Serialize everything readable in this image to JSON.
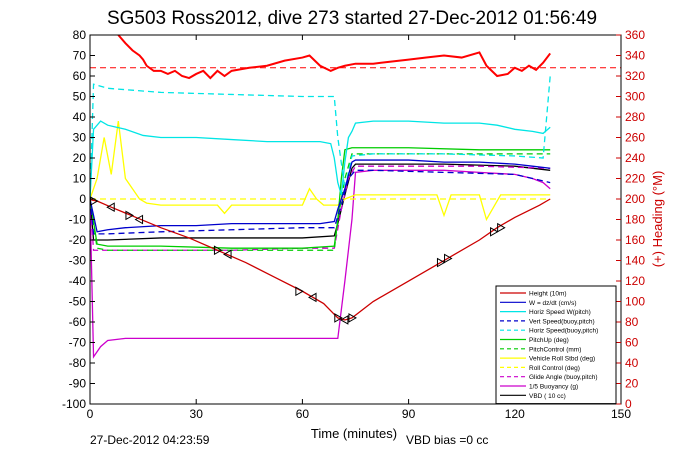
{
  "chart_data": {
    "type": "line",
    "title": "SG503 Ross2012, dive 273 started 27-Dec-2012 01:56:49",
    "xlabel": "Time (minutes)",
    "ylabel_right": "(+) Heading (°M)",
    "footer_left": "27-Dec-2012 04:23:59",
    "footer_right": "VBD bias =0 cc",
    "xlim": [
      0,
      150
    ],
    "ylim": [
      -100,
      80
    ],
    "y2lim": [
      0,
      360
    ],
    "xticks": [
      0,
      30,
      60,
      90,
      120,
      150
    ],
    "yticks": [
      -100,
      -90,
      -80,
      -70,
      -60,
      -50,
      -40,
      -30,
      -20,
      -10,
      0,
      10,
      20,
      30,
      40,
      50,
      60,
      70,
      80
    ],
    "y2ticks": [
      0,
      20,
      40,
      60,
      80,
      100,
      120,
      140,
      160,
      180,
      200,
      220,
      240,
      260,
      280,
      300,
      320,
      340,
      360
    ],
    "grid": false,
    "legend_position": "bottom-right",
    "colors": {
      "height": "#cc0000",
      "w": "#0000cc",
      "horiz_speed": "#00e5e5",
      "vert_speed": "#0000cc",
      "glide_horiz_speed": "#00e5e5",
      "pitch_up": "#00cc00",
      "pitch_control": "#00cc00",
      "vehicle_roll": "#ffff00",
      "roll_control": "#ffff00",
      "glide_angle": "#cc00cc",
      "buoyancy": "#cc00cc",
      "vbd": "#000000",
      "heading": "#ff0000",
      "heading_axis": "#cc0000"
    },
    "series": [
      {
        "name": "Height (10m)",
        "x": [
          0,
          0.5,
          2,
          6,
          13,
          20,
          28,
          36,
          44,
          52,
          60,
          66,
          70,
          72,
          74,
          80,
          90,
          100,
          110,
          115,
          120,
          127,
          130
        ],
        "y": [
          0,
          -0.5,
          -1,
          -4,
          -9,
          -14,
          -19,
          -25,
          -31,
          -38,
          -45,
          -51,
          -58,
          -59,
          -58,
          -50,
          -40,
          -30,
          -20,
          -14,
          -9,
          -3,
          0
        ]
      },
      {
        "name": "W = dz/dt (cm/s)",
        "x": [
          0,
          2,
          5,
          10,
          20,
          30,
          40,
          50,
          60,
          65,
          69,
          70,
          72,
          74,
          75,
          80,
          90,
          100,
          110,
          120,
          125,
          130
        ],
        "y": [
          0,
          -16,
          -15,
          -14,
          -13,
          -13,
          -12,
          -12,
          -12,
          -12,
          -11,
          -5,
          5,
          18,
          19,
          19,
          19,
          18,
          18,
          17,
          16,
          15
        ]
      },
      {
        "name": "Horiz Speed W(pitch)",
        "x": [
          0,
          1,
          3,
          5,
          10,
          15,
          20,
          30,
          40,
          50,
          60,
          65,
          68,
          69,
          70,
          71,
          72,
          73,
          74,
          75,
          80,
          90,
          100,
          110,
          115,
          120,
          125,
          128,
          130
        ],
        "y": [
          0,
          34,
          38,
          36,
          34,
          31,
          30,
          30,
          29,
          28,
          28,
          28,
          27,
          20,
          8,
          2,
          18,
          30,
          33,
          37,
          38,
          38,
          37,
          37,
          36,
          34,
          33,
          32,
          35
        ]
      },
      {
        "name": "Vert Speed(buoy,pitch)",
        "x": [
          0,
          1,
          5,
          20,
          40,
          60,
          69,
          71,
          73,
          75,
          80,
          100,
          120,
          130
        ],
        "y": [
          0,
          -17,
          -17,
          -16,
          -15,
          -14,
          -14,
          -3,
          10,
          14,
          14,
          13,
          12,
          8
        ]
      },
      {
        "name": "Horiz Speed(buoy,pitch)",
        "x": [
          0,
          1,
          5,
          20,
          40,
          60,
          69,
          70,
          72,
          74,
          80,
          100,
          120,
          128,
          130
        ],
        "y": [
          0,
          56,
          54,
          52,
          51,
          50,
          50,
          30,
          5,
          21,
          22,
          22,
          21,
          20,
          60
        ]
      },
      {
        "name": "PitchUp (deg)",
        "x": [
          0,
          2,
          5,
          20,
          40,
          60,
          69,
          70,
          71,
          72,
          74,
          75,
          90,
          110,
          130
        ],
        "y": [
          0,
          -22,
          -23,
          -23,
          -24,
          -24,
          -23,
          -10,
          10,
          24,
          25,
          25,
          25,
          24,
          24
        ]
      },
      {
        "name": "PitchControl (mm)",
        "x": [
          0,
          2,
          5,
          20,
          40,
          60,
          69,
          70,
          72,
          74,
          75,
          90,
          110,
          130
        ],
        "y": [
          0,
          -24,
          -25,
          -25,
          -25,
          -25,
          -25,
          -10,
          10,
          22,
          22,
          22,
          22,
          22
        ]
      },
      {
        "name": "Vehicle Roll Stbd (deg)",
        "x": [
          0,
          2,
          4,
          6,
          8,
          10,
          12,
          14,
          16,
          20,
          30,
          36,
          38,
          40,
          60,
          62,
          64,
          66,
          70,
          72,
          75,
          90,
          98,
          100,
          102,
          110,
          112,
          114,
          116,
          120,
          130
        ],
        "y": [
          0,
          10,
          30,
          12,
          38,
          10,
          5,
          0,
          -2,
          -3,
          -3,
          -3,
          -7,
          -3,
          -3,
          5,
          0,
          -3,
          -3,
          0,
          2,
          2,
          2,
          -8,
          2,
          2,
          -10,
          -4,
          2,
          2,
          2
        ]
      },
      {
        "name": "Roll Control (deg)",
        "x": [
          0,
          2,
          10,
          20,
          40,
          60,
          70,
          75,
          100,
          130
        ],
        "y": [
          0,
          0,
          0,
          0,
          0,
          0,
          0,
          0,
          0,
          0
        ]
      },
      {
        "name": "Glide Angle (buoy,pitch)",
        "x": [
          0,
          1,
          5,
          20,
          40,
          60,
          69,
          71,
          73,
          75,
          90,
          110,
          130
        ],
        "y": [
          0,
          -25,
          -25,
          -25,
          -25,
          -24,
          -24,
          -5,
          10,
          16,
          16,
          16,
          15
        ]
      },
      {
        "name": "1/5 Buoyancy (g)",
        "x": [
          0,
          1,
          3,
          5,
          10,
          20,
          30,
          40,
          50,
          60,
          70,
          72,
          74,
          75,
          80,
          90,
          100,
          110,
          120,
          125,
          128,
          130
        ],
        "y": [
          0,
          -77,
          -72,
          -69,
          -68,
          -68,
          -68,
          -68,
          -68,
          -68,
          -68,
          -40,
          -10,
          13,
          14,
          14,
          14,
          13,
          12,
          10,
          8,
          5
        ]
      },
      {
        "name": "VBD ( 10 cc)",
        "x": [
          0,
          1,
          5,
          20,
          40,
          60,
          69,
          70,
          72,
          74,
          75,
          80,
          100,
          120,
          130
        ],
        "y": [
          0,
          -20,
          -20,
          -19,
          -19,
          -19,
          -18,
          -12,
          2,
          15,
          17,
          17,
          17,
          16,
          14
        ]
      }
    ],
    "heading_series": {
      "name": "(+) Heading (°M)",
      "axis": "right",
      "x": [
        8,
        10,
        12,
        14,
        15,
        16,
        18,
        20,
        22,
        24,
        26,
        28,
        30,
        32,
        34,
        36,
        38,
        40,
        45,
        50,
        55,
        60,
        62,
        65,
        68,
        70,
        72,
        75,
        80,
        85,
        90,
        95,
        100,
        105,
        110,
        112,
        115,
        118,
        120,
        122,
        124,
        126,
        128,
        130
      ],
      "y": [
        360,
        352,
        345,
        340,
        336,
        330,
        325,
        325,
        322,
        325,
        320,
        318,
        322,
        325,
        318,
        325,
        320,
        325,
        328,
        330,
        335,
        338,
        340,
        330,
        325,
        328,
        330,
        332,
        332,
        334,
        336,
        338,
        340,
        338,
        343,
        330,
        320,
        322,
        328,
        325,
        330,
        326,
        333,
        342
      ]
    },
    "heading_reference": 328,
    "descent_pitch_markers": [
      {
        "x": 1,
        "y": -1
      },
      {
        "x": 6,
        "y": -4
      },
      {
        "x": 11,
        "y": -8
      },
      {
        "x": 14,
        "y": -10
      },
      {
        "x": 36,
        "y": -25
      },
      {
        "x": 39,
        "y": -27
      },
      {
        "x": 59,
        "y": -45
      },
      {
        "x": 63,
        "y": -48
      },
      {
        "x": 70,
        "y": -58
      },
      {
        "x": 72,
        "y": -59
      },
      {
        "x": 74,
        "y": -58
      }
    ],
    "ascent_pitch_markers": [
      {
        "x": 99,
        "y": -31
      },
      {
        "x": 101,
        "y": -29
      },
      {
        "x": 114,
        "y": -16
      },
      {
        "x": 116,
        "y": -14
      }
    ]
  }
}
